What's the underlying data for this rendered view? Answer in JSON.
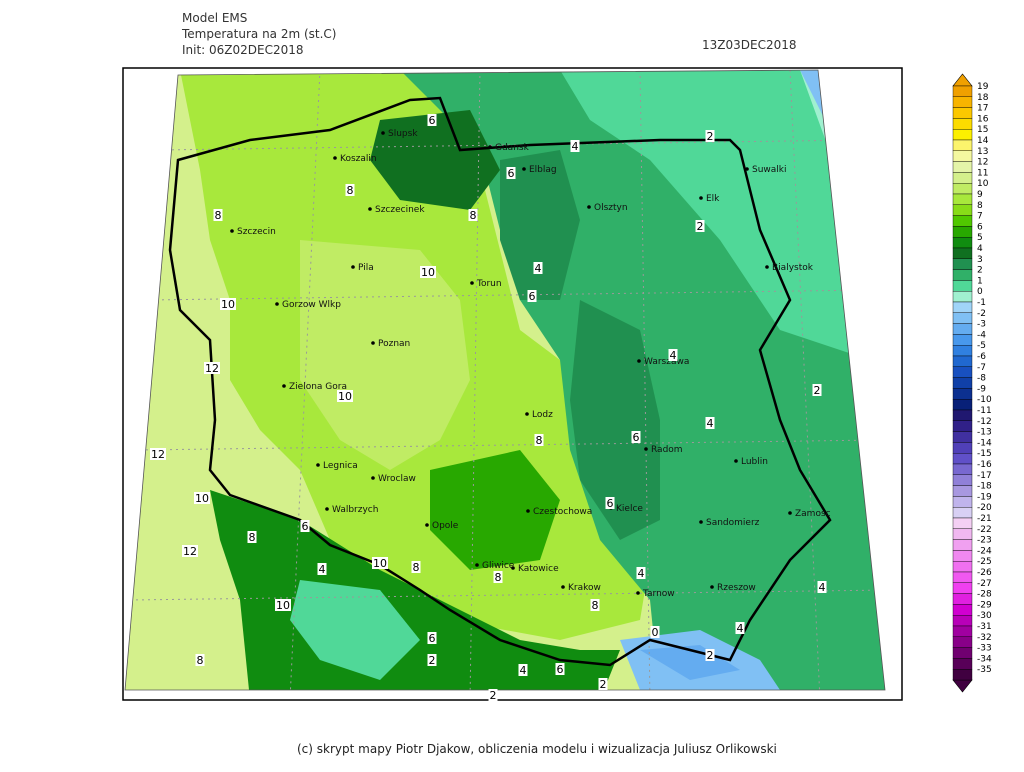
{
  "header": {
    "model": "Model EMS",
    "variable": "Temperatura na 2m (st.C)",
    "init": "Init: 06Z02DEC2018",
    "valid": "13Z03DEC2018"
  },
  "cities": [
    "Slupsk",
    "Koszalin",
    "Szczecinek",
    "Szczecin",
    "Pila",
    "Torun",
    "Gorzow Wlkp",
    "Poznan",
    "Zielona Gora",
    "Legnica",
    "Wroclaw",
    "Walbrzych",
    "Opole",
    "Czestochowa",
    "Gliwice",
    "Katowice",
    "Krakow",
    "Tarnow",
    "Rzeszow",
    "Lodz",
    "Warszawa",
    "Radom",
    "Kielce",
    "Sandomierz",
    "Lublin",
    "Zamosc",
    "Bialystok",
    "Suwalki",
    "Elk",
    "Olsztyn",
    "Elblag",
    "Gdansk"
  ],
  "contour_labels": [
    6,
    4,
    2,
    6,
    8,
    8,
    8,
    2,
    4,
    10,
    6,
    10,
    4,
    12,
    2,
    10,
    4,
    6,
    8,
    12,
    10,
    6,
    6,
    8,
    12,
    10,
    4,
    8,
    8,
    4,
    4,
    10,
    8,
    4,
    0,
    6,
    8,
    2,
    2,
    4,
    6,
    2,
    2
  ],
  "colorbar": {
    "levels": [
      19,
      18,
      17,
      16,
      15,
      14,
      13,
      12,
      11,
      10,
      9,
      8,
      7,
      6,
      5,
      4,
      3,
      2,
      1,
      0,
      -1,
      -2,
      -3,
      -4,
      -5,
      -6,
      -7,
      -8,
      -9,
      -10,
      -11,
      -12,
      -13,
      -14,
      -15,
      -16,
      -17,
      -18,
      -19,
      -20,
      -21,
      -22,
      -23,
      -24,
      -25,
      -26,
      -27,
      -28,
      -29,
      -30,
      -31,
      -32,
      -33,
      -34,
      -35
    ],
    "colors": [
      "#f0a000",
      "#f8b400",
      "#fcc800",
      "#fcdc00",
      "#fcf000",
      "#fcf46c",
      "#f4f8a0",
      "#e4f4a8",
      "#d4f08c",
      "#c0ec64",
      "#a8e83c",
      "#88dc18",
      "#50c800",
      "#28a800",
      "#108c10",
      "#107020",
      "#209050",
      "#30b068",
      "#50d898",
      "#a0f0d0",
      "#a0d4f8",
      "#80c0f4",
      "#64acf0",
      "#4898ec",
      "#3080e0",
      "#2068d0",
      "#1850c0",
      "#1040a8",
      "#0c3090",
      "#082078",
      "#201870",
      "#302088",
      "#4030a0",
      "#5040b8",
      "#6050c8",
      "#7868d0",
      "#9080d8",
      "#a898e0",
      "#c0b4ec",
      "#d8d0f4",
      "#f4d0f4",
      "#f0b8f0",
      "#f0a0f0",
      "#f088f0",
      "#f070f0",
      "#f058f0",
      "#f040f0",
      "#e020e0",
      "#d000d0",
      "#b800b8",
      "#a000a0",
      "#880088",
      "#700070",
      "#580058",
      "#400040"
    ]
  },
  "footer": "(c) skrypt mapy Piotr Djakow, obliczenia modelu i wizualizacja Juliusz Orlikowski"
}
